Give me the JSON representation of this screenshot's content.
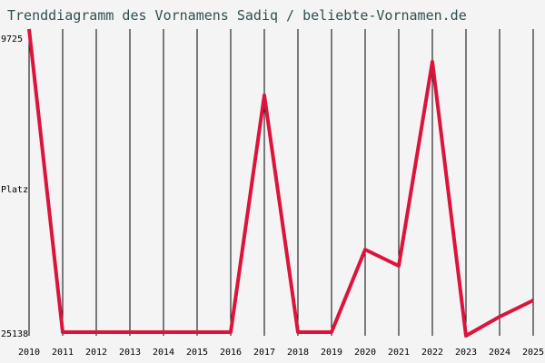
{
  "chart_data": {
    "type": "line",
    "title": "Trenddiagramm des Vornamens Sadiq / beliebte-Vornamen.de",
    "y_label": "Platz",
    "x": [
      2010,
      2011,
      2012,
      2013,
      2014,
      2015,
      2016,
      2017,
      2018,
      2019,
      2020,
      2021,
      2022,
      2023,
      2024,
      2025
    ],
    "values": [
      9725,
      24955,
      24955,
      24955,
      24955,
      24955,
      24955,
      13054,
      24955,
      24955,
      20806,
      21627,
      11367,
      25138,
      24180,
      23360
    ],
    "color": "#dc143c",
    "xlim": [
      2010,
      2025
    ],
    "xticks": [
      2010,
      2011,
      2012,
      2013,
      2014,
      2015,
      2016,
      2017,
      2018,
      2019,
      2020,
      2021,
      2022,
      2023,
      2024,
      2025
    ],
    "ylim": [
      9725,
      25138
    ],
    "y_inverted": true,
    "yticks": [
      9725,
      25138
    ],
    "grid": true
  }
}
